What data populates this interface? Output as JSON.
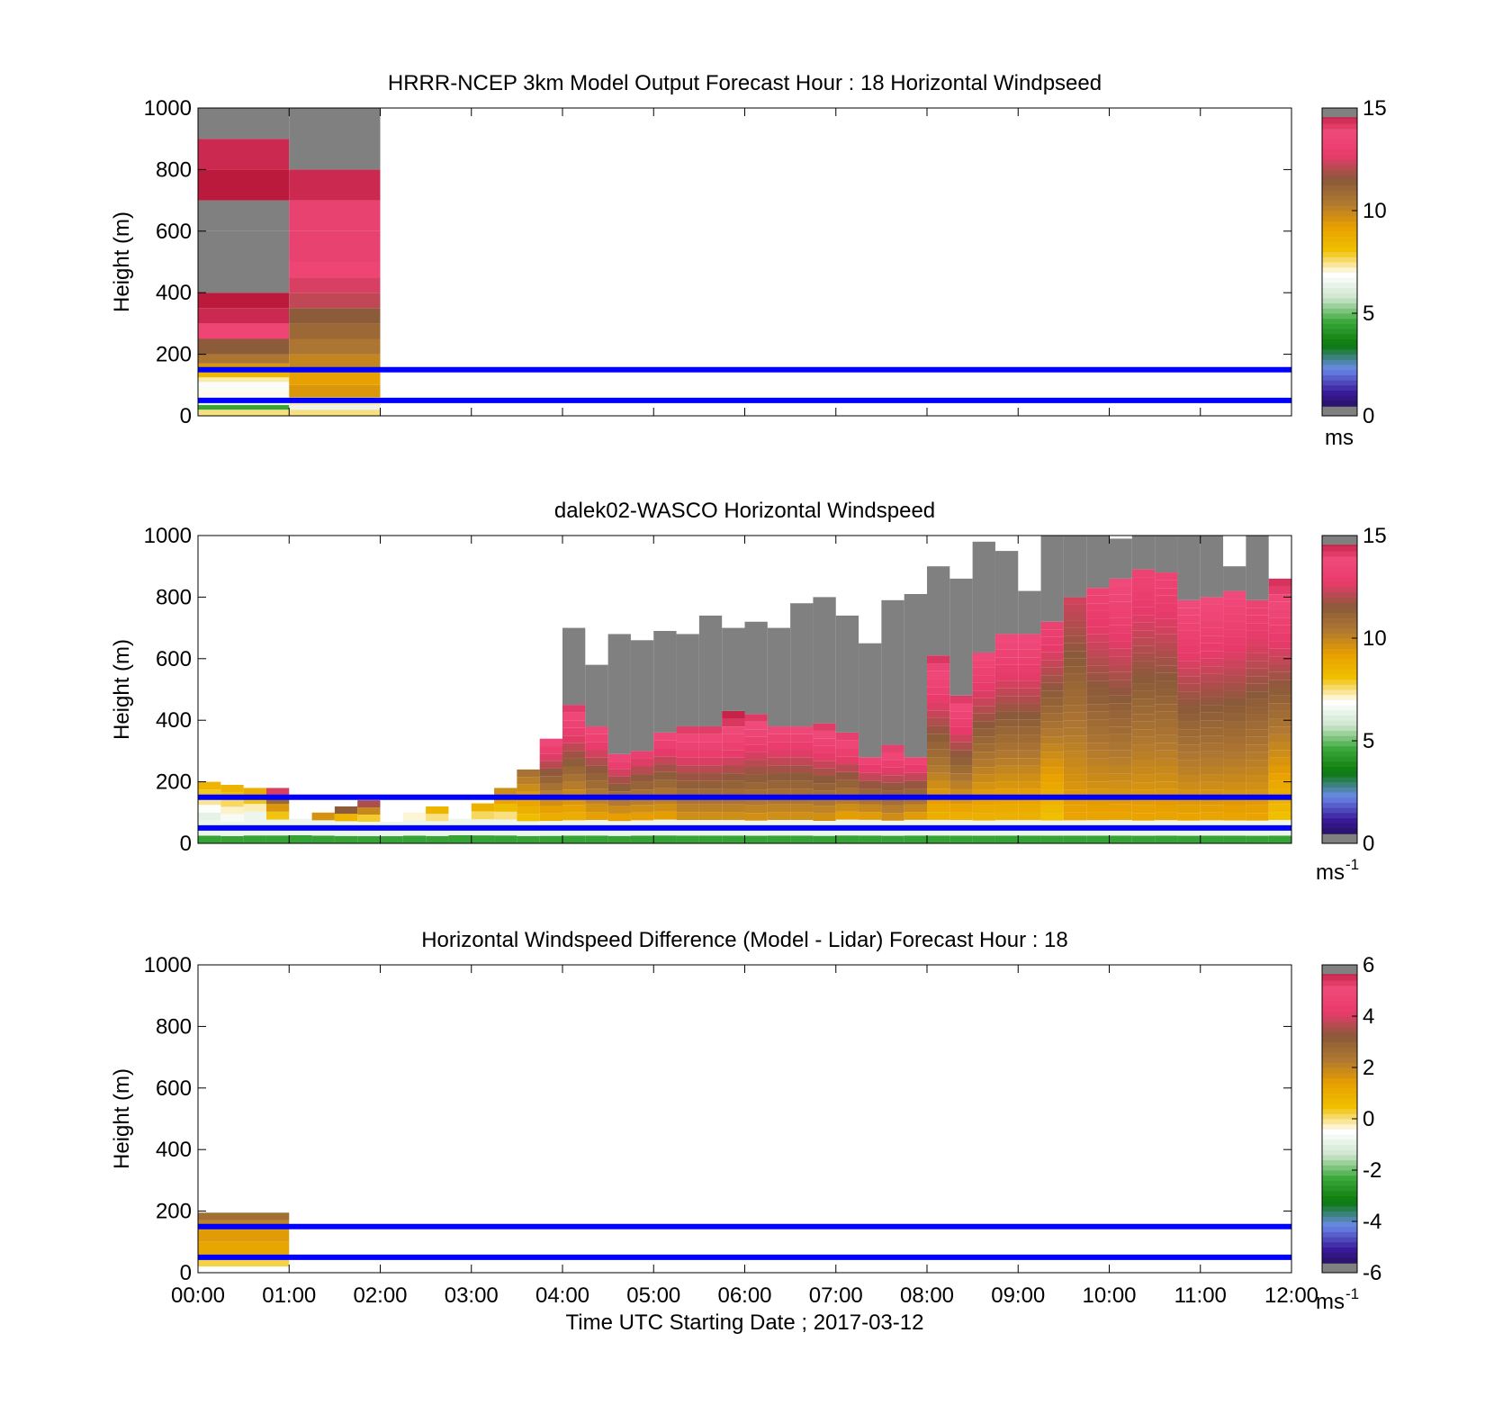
{
  "figure": {
    "xlabel": "Time UTC  Starting Date ; 2017-03-12",
    "x_ticks": [
      "00:00",
      "01:00",
      "02:00",
      "03:00",
      "04:00",
      "05:00",
      "06:00",
      "07:00",
      "08:00",
      "09:00",
      "10:00",
      "11:00",
      "12:00"
    ],
    "y_ticks": [
      "0",
      "200",
      "400",
      "600",
      "800",
      "1000"
    ],
    "ylabel": "Height (m)"
  },
  "colors": {
    "gray": "#808080",
    "reference_line": "#0000ff",
    "speed_scale": [
      "#808080",
      "#1a0a3c",
      "#3a1a9a",
      "#6a8ae8",
      "#0a7a0a",
      "#3aa83a",
      "#cfe6cf",
      "#ffffff",
      "#f0c000",
      "#e8a000",
      "#b07830",
      "#8a5a3a",
      "#e83a6a",
      "#f04a7a",
      "#b01030",
      "#808080"
    ],
    "diff_scale": [
      "#808080",
      "#1a0a3c",
      "#3a1a9a",
      "#6a8ae8",
      "#0a7a0a",
      "#3aa83a",
      "#cfe6cf",
      "#ffffff",
      "#f0c000",
      "#e8a000",
      "#b07830",
      "#8a5a3a",
      "#e83a6a",
      "#f04a7a",
      "#b01030",
      "#808080"
    ]
  },
  "chart_data": [
    {
      "type": "heatmap",
      "title": "HRRR-NCEP 3km Model Output   Forecast Hour : 18 Horizontal Windpseed",
      "ylabel": "Height (m)",
      "xlim": [
        0,
        12
      ],
      "ylim": [
        0,
        1000
      ],
      "colorbar": {
        "ticks": [
          "0",
          "5",
          "10",
          "15"
        ],
        "range": [
          0,
          15
        ],
        "unit": "ms"
      },
      "reference_heights_m": [
        50,
        150
      ],
      "columns": [
        {
          "x_start": 0,
          "x_end": 1,
          "cells": [
            {
              "z0": 0,
              "z1": 20,
              "v": 7.5
            },
            {
              "z0": 20,
              "z1": 35,
              "v": 4.5
            },
            {
              "z0": 35,
              "z1": 60,
              "v": 6.5
            },
            {
              "z0": 60,
              "z1": 85,
              "v": 7
            },
            {
              "z0": 85,
              "z1": 110,
              "v": 6.8
            },
            {
              "z0": 110,
              "z1": 125,
              "v": 7.3
            },
            {
              "z0": 125,
              "z1": 145,
              "v": 8.5
            },
            {
              "z0": 145,
              "z1": 170,
              "v": 9.5
            },
            {
              "z0": 170,
              "z1": 200,
              "v": 10.5
            },
            {
              "z0": 200,
              "z1": 250,
              "v": 11.5
            },
            {
              "z0": 250,
              "z1": 300,
              "v": 13.5
            },
            {
              "z0": 300,
              "z1": 350,
              "v": 14.5
            },
            {
              "z0": 350,
              "z1": 400,
              "v": 14.8
            },
            {
              "z0": 400,
              "z1": 600,
              "v": 15.5
            },
            {
              "z0": 600,
              "z1": 700,
              "v": 15
            },
            {
              "z0": 700,
              "z1": 800,
              "v": 14.8
            },
            {
              "z0": 800,
              "z1": 900,
              "v": 14.5
            },
            {
              "z0": 900,
              "z1": 1000,
              "v": 15.5
            }
          ]
        },
        {
          "x_start": 1,
          "x_end": 2,
          "cells": [
            {
              "z0": 0,
              "z1": 20,
              "v": 7.5
            },
            {
              "z0": 20,
              "z1": 35,
              "v": 6.5
            },
            {
              "z0": 35,
              "z1": 60,
              "v": 7.3
            },
            {
              "z0": 60,
              "z1": 100,
              "v": 9.5
            },
            {
              "z0": 100,
              "z1": 150,
              "v": 9.2
            },
            {
              "z0": 150,
              "z1": 200,
              "v": 10
            },
            {
              "z0": 200,
              "z1": 250,
              "v": 10.5
            },
            {
              "z0": 250,
              "z1": 300,
              "v": 11
            },
            {
              "z0": 300,
              "z1": 350,
              "v": 11.5
            },
            {
              "z0": 350,
              "z1": 400,
              "v": 12.2
            },
            {
              "z0": 400,
              "z1": 450,
              "v": 12.5
            },
            {
              "z0": 450,
              "z1": 500,
              "v": 13.5
            },
            {
              "z0": 500,
              "z1": 600,
              "v": 14
            },
            {
              "z0": 600,
              "z1": 700,
              "v": 14
            },
            {
              "z0": 700,
              "z1": 800,
              "v": 14.5
            },
            {
              "z0": 800,
              "z1": 1000,
              "v": 15.5
            }
          ]
        }
      ]
    },
    {
      "type": "heatmap",
      "title": "dalek02-WASCO  Horizontal Windspeed",
      "ylabel": "Height (m)",
      "xlim": [
        0,
        12
      ],
      "ylim": [
        0,
        1000
      ],
      "colorbar": {
        "ticks": [
          "0",
          "5",
          "10",
          "15"
        ],
        "range": [
          0,
          15
        ],
        "unit": "ms",
        "unit_exp": "-1"
      },
      "reference_heights_m": [
        50,
        150
      ],
      "profiles": [
        {
          "t": 0.0,
          "top": 200,
          "low": 6.0,
          "high": 9.0,
          "gray_top": 0
        },
        {
          "t": 0.25,
          "top": 190,
          "low": 6.5,
          "high": 9.0,
          "gray_top": 0
        },
        {
          "t": 0.5,
          "top": 180,
          "low": 6.0,
          "high": 9.5,
          "gray_top": 0
        },
        {
          "t": 0.75,
          "top": 180,
          "low": 7.0,
          "high": 14.0,
          "gray_top": 0
        },
        {
          "t": 1.0,
          "top": 80,
          "low": 6.0,
          "high": 9.0,
          "gray_top": 0
        },
        {
          "t": 1.25,
          "top": 100,
          "low": 7.0,
          "high": 14.0,
          "gray_top": 0
        },
        {
          "t": 1.5,
          "top": 120,
          "low": 7.0,
          "high": 14.5,
          "gray_top": 0
        },
        {
          "t": 1.75,
          "top": 140,
          "low": 7.0,
          "high": 14.0,
          "gray_top": 0
        },
        {
          "t": 2.0,
          "top": 70,
          "low": 6.0,
          "high": 9.0,
          "gray_top": 0
        },
        {
          "t": 2.25,
          "top": 100,
          "low": 6.0,
          "high": 9.0,
          "gray_top": 0
        },
        {
          "t": 2.5,
          "top": 120,
          "low": 7.0,
          "high": 9.5,
          "gray_top": 0
        },
        {
          "t": 2.75,
          "top": 80,
          "low": 6.0,
          "high": 9.0,
          "gray_top": 0
        },
        {
          "t": 3.0,
          "top": 130,
          "low": 7.0,
          "high": 9.5,
          "gray_top": 0
        },
        {
          "t": 3.25,
          "top": 180,
          "low": 7.0,
          "high": 10.5,
          "gray_top": 0
        },
        {
          "t": 3.5,
          "top": 240,
          "low": 8.0,
          "high": 11.0,
          "gray_top": 0
        },
        {
          "t": 3.75,
          "top": 340,
          "low": 8.5,
          "high": 14.0,
          "gray_top": 0
        },
        {
          "t": 4.0,
          "top": 450,
          "low": 8.5,
          "high": 14.5,
          "gray_top": 700
        },
        {
          "t": 4.25,
          "top": 380,
          "low": 9.0,
          "high": 14.0,
          "gray_top": 580
        },
        {
          "t": 4.5,
          "top": 290,
          "low": 9.0,
          "high": 14.0,
          "gray_top": 680
        },
        {
          "t": 4.75,
          "top": 300,
          "low": 9.0,
          "high": 13.5,
          "gray_top": 660
        },
        {
          "t": 5.0,
          "top": 360,
          "low": 9.0,
          "high": 14.0,
          "gray_top": 690
        },
        {
          "t": 5.25,
          "top": 380,
          "low": 9.5,
          "high": 14.5,
          "gray_top": 680
        },
        {
          "t": 5.5,
          "top": 380,
          "low": 9.5,
          "high": 14.5,
          "gray_top": 740
        },
        {
          "t": 5.75,
          "top": 430,
          "low": 9.5,
          "high": 15.0,
          "gray_top": 700
        },
        {
          "t": 6.0,
          "top": 420,
          "low": 9.5,
          "high": 14.5,
          "gray_top": 720
        },
        {
          "t": 6.25,
          "top": 380,
          "low": 9.5,
          "high": 14.0,
          "gray_top": 700
        },
        {
          "t": 6.5,
          "top": 380,
          "low": 9.5,
          "high": 14.0,
          "gray_top": 780
        },
        {
          "t": 6.75,
          "top": 390,
          "low": 9.5,
          "high": 14.5,
          "gray_top": 800
        },
        {
          "t": 7.0,
          "top": 360,
          "low": 9.0,
          "high": 14.5,
          "gray_top": 740
        },
        {
          "t": 7.25,
          "top": 280,
          "low": 9.0,
          "high": 14.0,
          "gray_top": 650
        },
        {
          "t": 7.5,
          "top": 320,
          "low": 9.5,
          "high": 14.5,
          "gray_top": 790
        },
        {
          "t": 7.75,
          "top": 280,
          "low": 9.0,
          "high": 14.0,
          "gray_top": 810
        },
        {
          "t": 8.0,
          "top": 610,
          "low": 8.5,
          "high": 14.5,
          "gray_top": 900
        },
        {
          "t": 8.25,
          "top": 480,
          "low": 8.5,
          "high": 14.5,
          "gray_top": 860
        },
        {
          "t": 8.5,
          "top": 620,
          "low": 8.5,
          "high": 14.0,
          "gray_top": 980
        },
        {
          "t": 8.75,
          "top": 680,
          "low": 8.5,
          "high": 14.0,
          "gray_top": 950
        },
        {
          "t": 9.0,
          "top": 680,
          "low": 8.5,
          "high": 14.0,
          "gray_top": 820
        },
        {
          "t": 9.25,
          "top": 720,
          "low": 8.0,
          "high": 13.5,
          "gray_top": 1000
        },
        {
          "t": 9.5,
          "top": 800,
          "low": 9.0,
          "high": 12.5,
          "gray_top": 1000
        },
        {
          "t": 9.75,
          "top": 830,
          "low": 9.0,
          "high": 13.5,
          "gray_top": 1000
        },
        {
          "t": 10.0,
          "top": 860,
          "low": 9.0,
          "high": 14.0,
          "gray_top": 990
        },
        {
          "t": 10.25,
          "top": 890,
          "low": 9.0,
          "high": 13.5,
          "gray_top": 1000
        },
        {
          "t": 10.5,
          "top": 880,
          "low": 9.0,
          "high": 13.5,
          "gray_top": 1000
        },
        {
          "t": 10.75,
          "top": 790,
          "low": 9.0,
          "high": 14.0,
          "gray_top": 1000
        },
        {
          "t": 11.0,
          "top": 800,
          "low": 9.0,
          "high": 14.0,
          "gray_top": 1000
        },
        {
          "t": 11.25,
          "top": 820,
          "low": 9.0,
          "high": 14.0,
          "gray_top": 900
        },
        {
          "t": 11.5,
          "top": 790,
          "low": 9.0,
          "high": 13.5,
          "gray_top": 1000
        },
        {
          "t": 11.75,
          "top": 860,
          "low": 8.0,
          "high": 14.5,
          "gray_top": 0
        }
      ]
    },
    {
      "type": "heatmap",
      "title": "Horizontal Windspeed Difference (Model - Lidar) Forecast Hour : 18",
      "ylabel": "Height (m)",
      "xlabel": "Time UTC  Starting Date ; 2017-03-12",
      "xlim": [
        0,
        12
      ],
      "ylim": [
        0,
        1000
      ],
      "colorbar": {
        "ticks": [
          "-6",
          "-4",
          "-2",
          "0",
          "2",
          "4",
          "6"
        ],
        "range": [
          -6,
          6
        ],
        "unit": "ms",
        "unit_exp": "-1"
      },
      "reference_heights_m": [
        50,
        150
      ],
      "columns": [
        {
          "x_start": 0,
          "x_end": 1,
          "cells": [
            {
              "z0": 0,
              "z1": 20,
              "v": -0.5
            },
            {
              "z0": 20,
              "z1": 40,
              "v": 0.2
            },
            {
              "z0": 40,
              "z1": 60,
              "v": 0.8
            },
            {
              "z0": 60,
              "z1": 100,
              "v": 1.2
            },
            {
              "z0": 100,
              "z1": 140,
              "v": 1.5
            },
            {
              "z0": 140,
              "z1": 170,
              "v": 2.0
            },
            {
              "z0": 170,
              "z1": 195,
              "v": 2.6
            }
          ]
        }
      ]
    }
  ]
}
